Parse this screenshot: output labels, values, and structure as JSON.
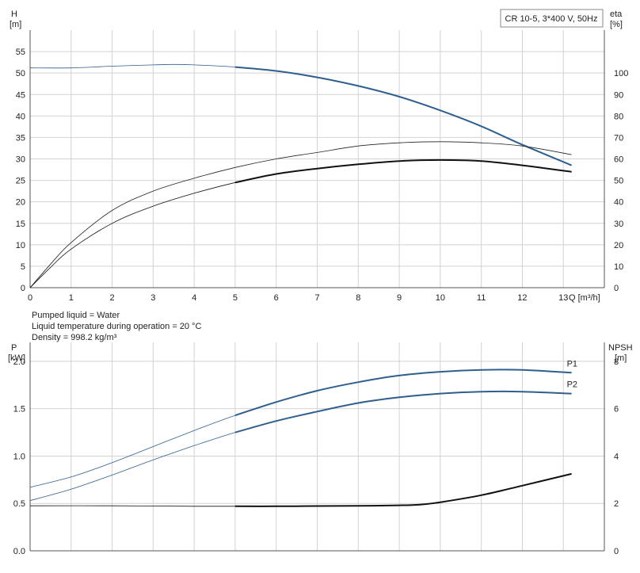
{
  "info": {
    "line1": "Pumped liquid = Water",
    "line2": "Liquid temperature during operation = 20 °C",
    "line3": "Density = 998.2 kg/m³"
  },
  "chart_data": [
    {
      "type": "line",
      "legend_box": "CR 10-5, 3*400 V, 50Hz",
      "xlabel": "Q [m³/h]",
      "ylabel_left": [
        "H",
        "[m]"
      ],
      "ylabel_right": [
        "eta",
        "[%]"
      ],
      "xlim": [
        0,
        14
      ],
      "ylim_left": [
        0,
        60
      ],
      "ylim_right": [
        0,
        120
      ],
      "x_ticks": [
        0,
        1,
        2,
        3,
        4,
        5,
        6,
        7,
        8,
        9,
        10,
        11,
        12,
        13
      ],
      "y_ticks_left": [
        0,
        5,
        10,
        15,
        20,
        25,
        30,
        35,
        40,
        45,
        50,
        55
      ],
      "y_ticks_right": [
        0,
        10,
        20,
        30,
        40,
        50,
        60,
        70,
        80,
        90,
        100
      ],
      "grid": true,
      "series": [
        {
          "axis": "left",
          "color": "#2e5f8e",
          "x": [
            0,
            1,
            2,
            3,
            3.5,
            4,
            5,
            6,
            7,
            8,
            9,
            10,
            11,
            12,
            13.2
          ],
          "y": [
            51.2,
            51.2,
            51.6,
            51.9,
            52.0,
            51.9,
            51.4,
            50.5,
            49.0,
            47.0,
            44.5,
            41.3,
            37.6,
            33.3,
            28.5
          ],
          "highlight_from": 5
        },
        {
          "axis": "right",
          "color": "#222222",
          "x": [
            0,
            0.5,
            1,
            2,
            3,
            4,
            5,
            6,
            7,
            8,
            9,
            10,
            11,
            12,
            13.2
          ],
          "y": [
            0,
            11,
            21,
            36,
            45,
            51,
            56,
            60,
            63,
            66,
            67.5,
            68,
            67.5,
            66,
            62
          ],
          "highlight_from": null
        },
        {
          "axis": "right",
          "color": "#111111",
          "x": [
            0,
            0.5,
            1,
            2,
            3,
            4,
            5,
            6,
            7,
            8,
            9,
            10,
            11,
            12,
            13.2
          ],
          "y": [
            0,
            9.5,
            18,
            30,
            38,
            44,
            49,
            53,
            55.5,
            57.5,
            59,
            59.5,
            59,
            57,
            54
          ],
          "highlight_from": 5
        }
      ]
    },
    {
      "type": "line",
      "xlim": [
        0,
        14
      ],
      "ylabel_left": [
        "P",
        "[kW]"
      ],
      "ylabel_right": [
        "NPSH",
        "[m]"
      ],
      "ylim_left": [
        0,
        2.2
      ],
      "ylim_right": [
        0,
        8.8
      ],
      "y_ticks_left": [
        "0.0",
        "0.5",
        "1.0",
        "1.5",
        "2.0"
      ],
      "y_ticks_right": [
        0,
        2,
        4,
        6,
        8
      ],
      "grid": true,
      "series": [
        {
          "name": "P1",
          "axis": "left",
          "color": "#2e5f8e",
          "x": [
            0,
            1,
            2,
            3,
            4,
            5,
            6,
            7,
            8,
            9,
            10,
            11,
            12,
            13.2
          ],
          "y": [
            0.67,
            0.78,
            0.93,
            1.1,
            1.27,
            1.43,
            1.57,
            1.69,
            1.78,
            1.85,
            1.89,
            1.91,
            1.91,
            1.88
          ],
          "highlight_from": 5
        },
        {
          "name": "P2",
          "axis": "left",
          "color": "#2e5f8e",
          "x": [
            0,
            1,
            2,
            3,
            4,
            5,
            6,
            7,
            8,
            9,
            10,
            11,
            12,
            13.2
          ],
          "y": [
            0.53,
            0.65,
            0.8,
            0.96,
            1.11,
            1.25,
            1.37,
            1.47,
            1.56,
            1.62,
            1.66,
            1.68,
            1.68,
            1.66
          ],
          "highlight_from": 5
        },
        {
          "axis": "right",
          "color": "#111111",
          "x": [
            0,
            2,
            4,
            5,
            6,
            7,
            8,
            9,
            9.5,
            10,
            11,
            12,
            13.2
          ],
          "y": [
            1.9,
            1.9,
            1.88,
            1.88,
            1.88,
            1.89,
            1.9,
            1.92,
            1.95,
            2.05,
            2.35,
            2.75,
            3.25
          ],
          "highlight_from": 5
        }
      ]
    }
  ]
}
